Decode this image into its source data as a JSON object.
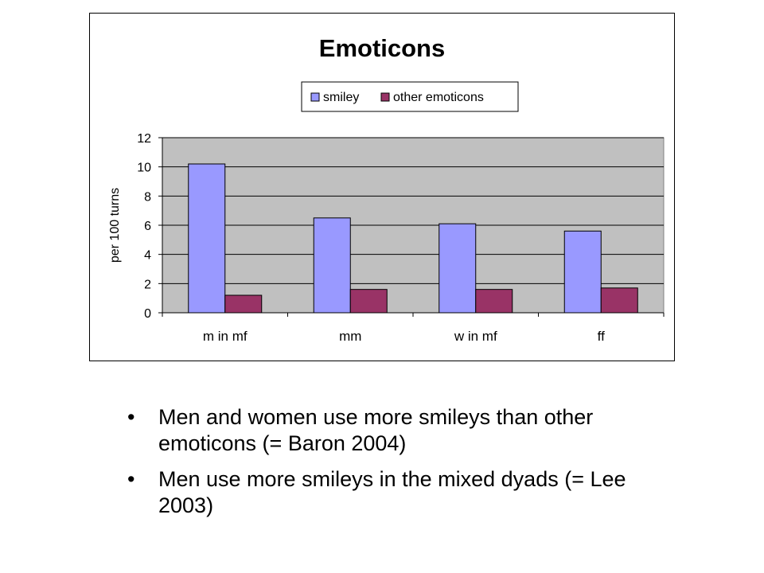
{
  "chart_data": {
    "type": "bar",
    "title": "Emoticons",
    "ylabel": "per 100 turns",
    "xlabel": "",
    "categories": [
      "m in mf",
      "mm",
      "w in mf",
      "ff"
    ],
    "series": [
      {
        "name": "smiley",
        "values": [
          10.2,
          6.5,
          6.1,
          5.6
        ],
        "color": "#9999ff"
      },
      {
        "name": "other emoticons",
        "values": [
          1.2,
          1.6,
          1.6,
          1.7
        ],
        "color": "#993366"
      }
    ],
    "ylim": [
      0,
      12
    ],
    "yticks": [
      0,
      2,
      4,
      6,
      8,
      10,
      12
    ],
    "grid": true,
    "plot_background": "#c0c0c0",
    "legend_position": "top-center"
  },
  "bullets": [
    {
      "marker": "•",
      "text": "Men and women use more smileys than other emoticons (= Baron 2004)"
    },
    {
      "marker": "•",
      "text": "Men use more smileys in the mixed dyads (= Lee 2003)"
    }
  ]
}
